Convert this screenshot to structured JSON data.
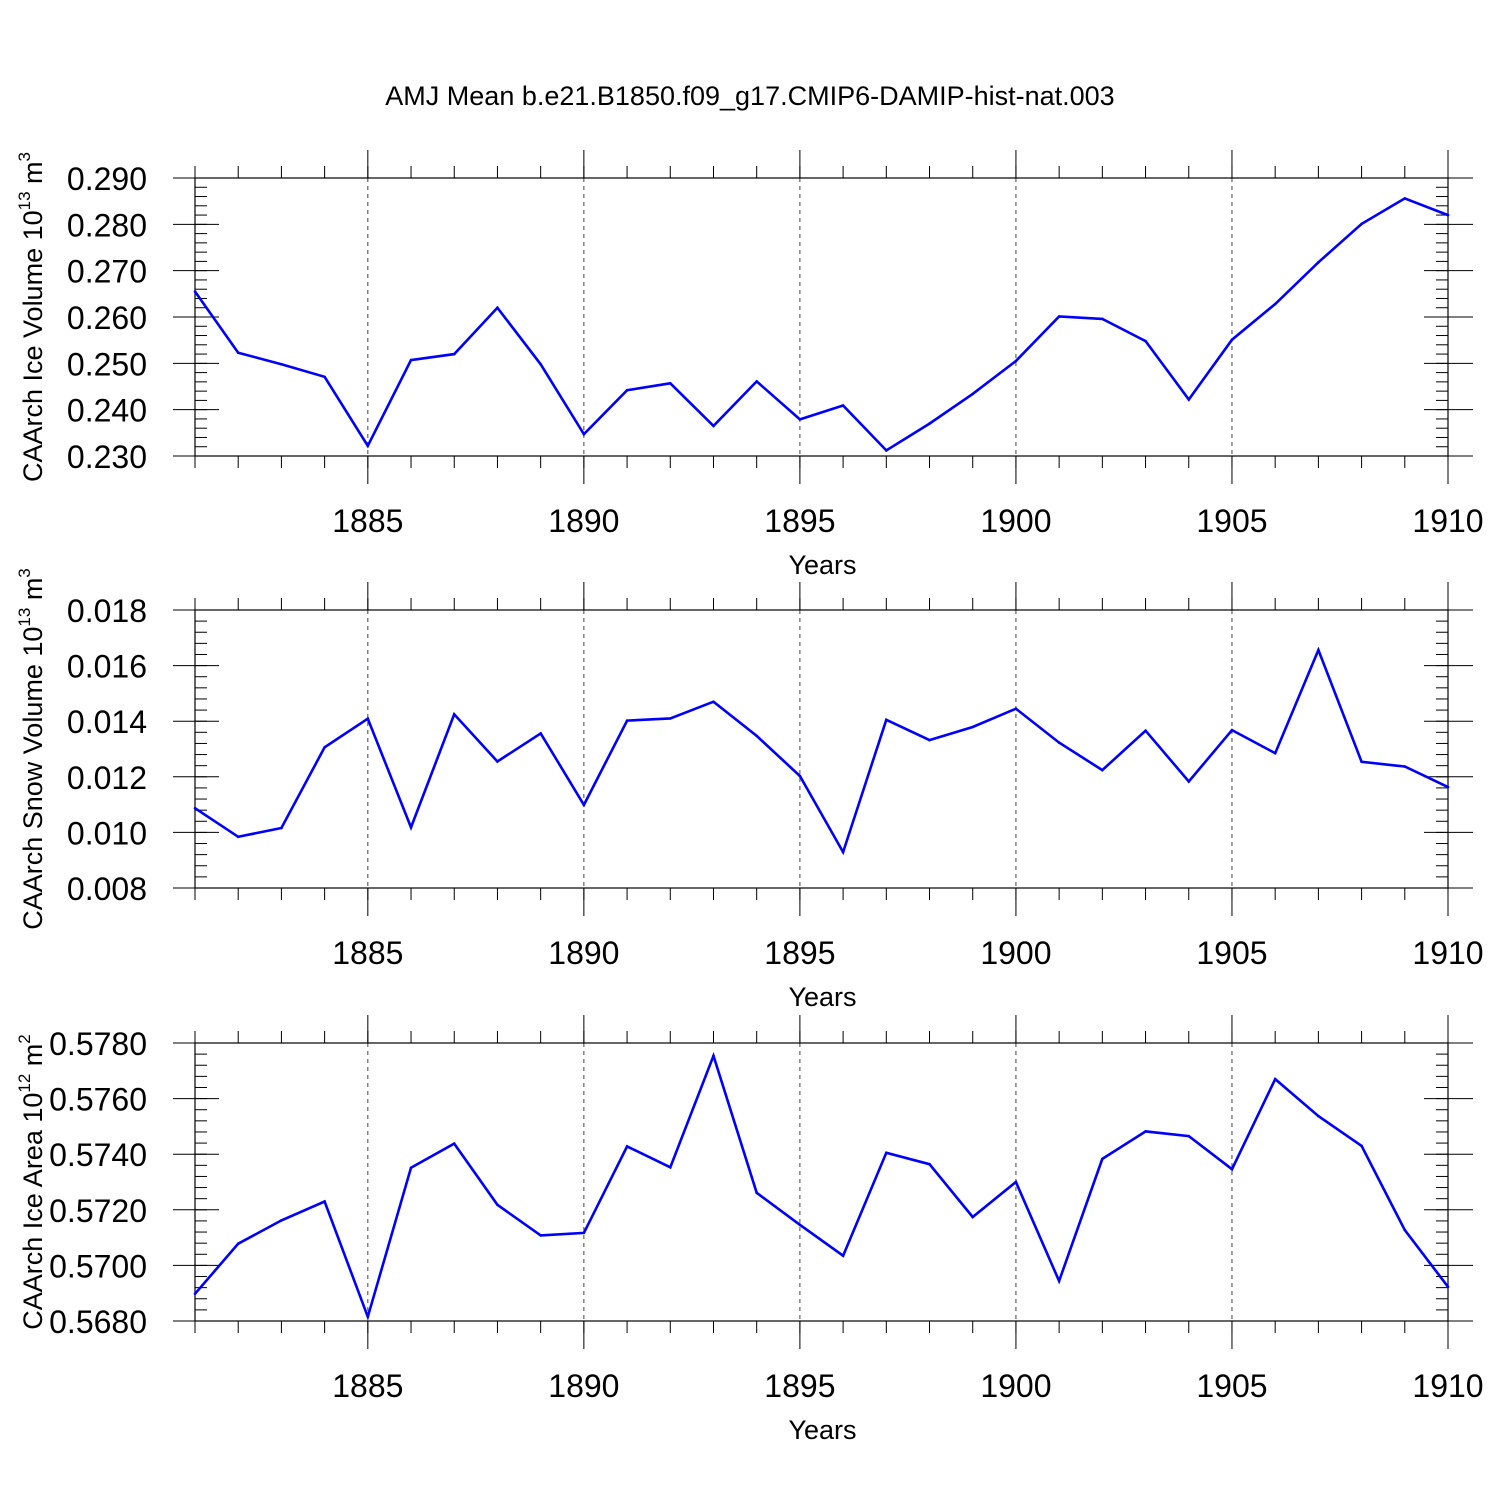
{
  "chart_title": "AMJ Mean b.e21.B1850.f09_g17.CMIP6-DAMIP-hist-nat.003",
  "colors": {
    "line": "#0000ff",
    "axis": "#000000",
    "grid": "#444444"
  },
  "chart_data": [
    {
      "type": "line",
      "name": "ice-volume",
      "ylabel_main": "CAArch Ice Volume 10",
      "ylabel_exp": "13",
      "ylabel_unit": " m",
      "ylabel_unit_exp": "3",
      "xlabel": "Years",
      "xlim": [
        1881,
        1910
      ],
      "ylim": [
        0.23,
        0.29
      ],
      "xticks": [
        1885,
        1890,
        1895,
        1900,
        1905,
        1910
      ],
      "xtick_labels": [
        "1885",
        "1890",
        "1895",
        "1900",
        "1905",
        "1910"
      ],
      "yticks": [
        0.23,
        0.24,
        0.25,
        0.26,
        0.27,
        0.28,
        0.29
      ],
      "ytick_labels": [
        "0.230",
        "0.240",
        "0.250",
        "0.260",
        "0.270",
        "0.280",
        "0.290"
      ],
      "yminor_step": 0.002,
      "x": [
        1881,
        1882,
        1883,
        1884,
        1885,
        1886,
        1887,
        1888,
        1889,
        1890,
        1891,
        1892,
        1893,
        1894,
        1895,
        1896,
        1897,
        1898,
        1899,
        1900,
        1901,
        1902,
        1903,
        1904,
        1905,
        1906,
        1907,
        1908,
        1909,
        1910
      ],
      "values": [
        0.2655,
        0.2523,
        0.2498,
        0.2471,
        0.2322,
        0.2507,
        0.252,
        0.262,
        0.2498,
        0.2347,
        0.2442,
        0.2457,
        0.2365,
        0.2461,
        0.2379,
        0.2409,
        0.2312,
        0.237,
        0.2434,
        0.2505,
        0.2601,
        0.2596,
        0.2548,
        0.2422,
        0.2551,
        0.2628,
        0.2718,
        0.2801,
        0.2856,
        0.282
      ]
    },
    {
      "type": "line",
      "name": "snow-volume",
      "ylabel_main": "CAArch Snow Volume 10",
      "ylabel_exp": "13",
      "ylabel_unit": " m",
      "ylabel_unit_exp": "3",
      "xlabel": "Years",
      "xlim": [
        1881,
        1910
      ],
      "ylim": [
        0.008,
        0.018
      ],
      "xticks": [
        1885,
        1890,
        1895,
        1900,
        1905,
        1910
      ],
      "xtick_labels": [
        "1885",
        "1890",
        "1895",
        "1900",
        "1905",
        "1910"
      ],
      "yticks": [
        0.008,
        0.01,
        0.012,
        0.014,
        0.016,
        0.018
      ],
      "ytick_labels": [
        "0.008",
        "0.010",
        "0.012",
        "0.014",
        "0.016",
        "0.018"
      ],
      "yminor_step": 0.0004,
      "x": [
        1881,
        1882,
        1883,
        1884,
        1885,
        1886,
        1887,
        1888,
        1889,
        1890,
        1891,
        1892,
        1893,
        1894,
        1895,
        1896,
        1897,
        1898,
        1899,
        1900,
        1901,
        1902,
        1903,
        1904,
        1905,
        1906,
        1907,
        1908,
        1909,
        1910
      ],
      "values": [
        0.01087,
        0.00984,
        0.01016,
        0.01306,
        0.01409,
        0.01018,
        0.01425,
        0.01255,
        0.01356,
        0.01099,
        0.01402,
        0.0141,
        0.0147,
        0.01347,
        0.01203,
        0.00929,
        0.01405,
        0.01332,
        0.01379,
        0.01445,
        0.01323,
        0.01224,
        0.01366,
        0.01183,
        0.01368,
        0.01285,
        0.01656,
        0.01254,
        0.01237,
        0.01163
      ]
    },
    {
      "type": "line",
      "name": "ice-area",
      "ylabel_main": "CAArch Ice Area 10",
      "ylabel_exp": "12",
      "ylabel_unit": " m",
      "ylabel_unit_exp": "2",
      "xlabel": "Years",
      "xlim": [
        1881,
        1910
      ],
      "ylim": [
        0.568,
        0.578
      ],
      "xticks": [
        1885,
        1890,
        1895,
        1900,
        1905,
        1910
      ],
      "xtick_labels": [
        "1885",
        "1890",
        "1895",
        "1900",
        "1905",
        "1910"
      ],
      "yticks": [
        0.568,
        0.57,
        0.572,
        0.574,
        0.576,
        0.578
      ],
      "ytick_labels": [
        "0.5680",
        "0.5700",
        "0.5720",
        "0.5740",
        "0.5760",
        "0.5780"
      ],
      "yminor_step": 0.0004,
      "x": [
        1881,
        1882,
        1883,
        1884,
        1885,
        1886,
        1887,
        1888,
        1889,
        1890,
        1891,
        1892,
        1893,
        1894,
        1895,
        1896,
        1897,
        1898,
        1899,
        1900,
        1901,
        1902,
        1903,
        1904,
        1905,
        1906,
        1907,
        1908,
        1909,
        1910
      ],
      "values": [
        0.56898,
        0.57078,
        0.57162,
        0.5723,
        0.56815,
        0.57351,
        0.57438,
        0.57218,
        0.57108,
        0.57117,
        0.57428,
        0.57353,
        0.57754,
        0.57261,
        0.57146,
        0.57035,
        0.57405,
        0.57364,
        0.57174,
        0.573,
        0.56944,
        0.57383,
        0.57482,
        0.57465,
        0.57346,
        0.5767,
        0.57537,
        0.5743,
        0.57127,
        0.56923
      ]
    }
  ]
}
